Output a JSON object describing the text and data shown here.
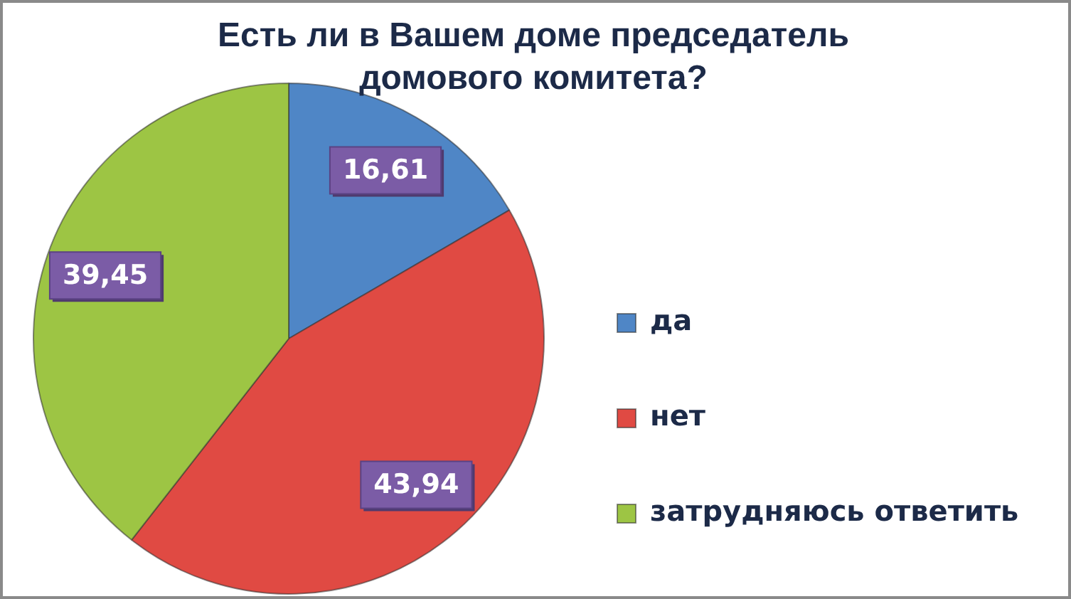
{
  "chart_data": {
    "type": "pie",
    "title": "Есть ли в Вашем доме председатель домового комитета?",
    "categories": [
      "да",
      "нет",
      "затрудняюсь ответить"
    ],
    "values": [
      16.61,
      43.94,
      39.45
    ],
    "colors": [
      "#4f86c6",
      "#e04a43",
      "#9dc544"
    ],
    "value_labels": [
      "16,61",
      "43,94",
      "39,45"
    ],
    "legend": "right"
  }
}
